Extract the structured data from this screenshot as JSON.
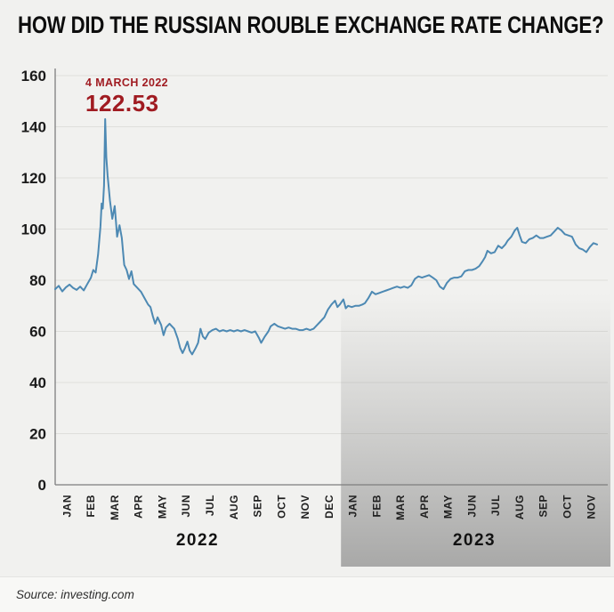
{
  "source": "Source: investing.com",
  "colors": {
    "background": "#f1f1ef",
    "line": "#4d89b3",
    "annotation": "#a01b21",
    "grid": "#dededb",
    "axis": "#7e7e7e",
    "tick_text": "#1a1a1a",
    "shade_top": "rgba(135,135,135,0)",
    "shade_bottom": "rgba(120,120,120,0.6)"
  },
  "chart_data": {
    "type": "line",
    "title": "HOW DID THE RUSSIAN ROUBLE EXCHANGE RATE CHANGE?",
    "xlabel": "",
    "ylabel": "",
    "ylim": [
      0,
      160
    ],
    "y_ticks": [
      0,
      20,
      40,
      60,
      80,
      100,
      120,
      140,
      160
    ],
    "grid": true,
    "legend": "none",
    "highlighted_period": "2023",
    "annotation": {
      "date": "4 MARCH 2022",
      "value": "122.53"
    },
    "x_axis": {
      "groups": [
        {
          "year": "2022",
          "months": [
            "JAN",
            "FEB",
            "MAR",
            "APR",
            "MAY",
            "JUN",
            "JUL",
            "AUG",
            "SEP",
            "OCT",
            "NOV",
            "DEC"
          ]
        },
        {
          "year": "2023",
          "months": [
            "JAN",
            "FEB",
            "MAR",
            "APR",
            "MAY",
            "JUN",
            "JUL",
            "AUG",
            "SEP",
            "OCT",
            "NOV"
          ]
        }
      ]
    },
    "series": [
      {
        "name": "rouble exchange rate",
        "points": [
          [
            0,
            76.5
          ],
          [
            0.15,
            77.8
          ],
          [
            0.3,
            75.6
          ],
          [
            0.45,
            77.2
          ],
          [
            0.6,
            78.3
          ],
          [
            0.75,
            77
          ],
          [
            0.9,
            76.2
          ],
          [
            1.05,
            77.5
          ],
          [
            1.2,
            76
          ],
          [
            1.35,
            78.5
          ],
          [
            1.5,
            81
          ],
          [
            1.6,
            84
          ],
          [
            1.7,
            83
          ],
          [
            1.8,
            90
          ],
          [
            1.9,
            101
          ],
          [
            1.95,
            110
          ],
          [
            2,
            108
          ],
          [
            2.05,
            117
          ],
          [
            2.1,
            143
          ],
          [
            2.15,
            128
          ],
          [
            2.2,
            121
          ],
          [
            2.3,
            111
          ],
          [
            2.4,
            104
          ],
          [
            2.5,
            109
          ],
          [
            2.55,
            103
          ],
          [
            2.6,
            97
          ],
          [
            2.7,
            101.5
          ],
          [
            2.8,
            96.5
          ],
          [
            2.9,
            86
          ],
          [
            3,
            84
          ],
          [
            3.1,
            80.5
          ],
          [
            3.2,
            83.5
          ],
          [
            3.3,
            78.5
          ],
          [
            3.45,
            77
          ],
          [
            3.6,
            75.5
          ],
          [
            3.75,
            73
          ],
          [
            3.9,
            70.5
          ],
          [
            4,
            69.5
          ],
          [
            4.1,
            66
          ],
          [
            4.2,
            63
          ],
          [
            4.3,
            65.5
          ],
          [
            4.45,
            62.5
          ],
          [
            4.55,
            58.5
          ],
          [
            4.65,
            61.5
          ],
          [
            4.8,
            63
          ],
          [
            4.9,
            62
          ],
          [
            5,
            61
          ],
          [
            5.15,
            57
          ],
          [
            5.25,
            53.5
          ],
          [
            5.35,
            51.5
          ],
          [
            5.45,
            53.5
          ],
          [
            5.55,
            56
          ],
          [
            5.65,
            52.5
          ],
          [
            5.75,
            51
          ],
          [
            5.9,
            53.5
          ],
          [
            6,
            55.5
          ],
          [
            6.1,
            61
          ],
          [
            6.2,
            58
          ],
          [
            6.3,
            57
          ],
          [
            6.45,
            59.5
          ],
          [
            6.6,
            60.5
          ],
          [
            6.75,
            61
          ],
          [
            6.9,
            60
          ],
          [
            7.05,
            60.5
          ],
          [
            7.2,
            60
          ],
          [
            7.35,
            60.5
          ],
          [
            7.5,
            60
          ],
          [
            7.65,
            60.5
          ],
          [
            7.8,
            60
          ],
          [
            7.95,
            60.5
          ],
          [
            8.1,
            60
          ],
          [
            8.25,
            59.5
          ],
          [
            8.4,
            60
          ],
          [
            8.55,
            57.5
          ],
          [
            8.65,
            55.5
          ],
          [
            8.8,
            58
          ],
          [
            8.95,
            60
          ],
          [
            9.05,
            62
          ],
          [
            9.2,
            63
          ],
          [
            9.35,
            62
          ],
          [
            9.5,
            61.5
          ],
          [
            9.65,
            61
          ],
          [
            9.8,
            61.5
          ],
          [
            9.95,
            61
          ],
          [
            10.1,
            61
          ],
          [
            10.25,
            60.5
          ],
          [
            10.4,
            60.5
          ],
          [
            10.55,
            61
          ],
          [
            10.7,
            60.5
          ],
          [
            10.85,
            61
          ],
          [
            11,
            62.5
          ],
          [
            11.15,
            64
          ],
          [
            11.3,
            65.5
          ],
          [
            11.45,
            68.5
          ],
          [
            11.6,
            70.5
          ],
          [
            11.75,
            72
          ],
          [
            11.85,
            69.5
          ],
          [
            11.95,
            70.5
          ],
          [
            12.1,
            72.5
          ],
          [
            12.2,
            69
          ],
          [
            12.3,
            70
          ],
          [
            12.45,
            69.5
          ],
          [
            12.6,
            70
          ],
          [
            12.75,
            70
          ],
          [
            12.9,
            70.5
          ],
          [
            13,
            71
          ],
          [
            13.15,
            73
          ],
          [
            13.3,
            75.5
          ],
          [
            13.45,
            74.5
          ],
          [
            13.6,
            75
          ],
          [
            13.75,
            75.5
          ],
          [
            13.9,
            76
          ],
          [
            14.05,
            76.5
          ],
          [
            14.2,
            77
          ],
          [
            14.35,
            77.5
          ],
          [
            14.5,
            77
          ],
          [
            14.65,
            77.5
          ],
          [
            14.8,
            77
          ],
          [
            14.95,
            78
          ],
          [
            15.1,
            80.5
          ],
          [
            15.25,
            81.5
          ],
          [
            15.4,
            81
          ],
          [
            15.55,
            81.5
          ],
          [
            15.7,
            82
          ],
          [
            15.85,
            81
          ],
          [
            16,
            80
          ],
          [
            16.15,
            77.5
          ],
          [
            16.3,
            76.5
          ],
          [
            16.45,
            79
          ],
          [
            16.6,
            80.5
          ],
          [
            16.75,
            81
          ],
          [
            16.9,
            81
          ],
          [
            17.05,
            81.5
          ],
          [
            17.2,
            83.5
          ],
          [
            17.35,
            84
          ],
          [
            17.5,
            84
          ],
          [
            17.65,
            84.5
          ],
          [
            17.8,
            85.5
          ],
          [
            17.95,
            87.5
          ],
          [
            18.05,
            89
          ],
          [
            18.15,
            91.5
          ],
          [
            18.3,
            90.5
          ],
          [
            18.45,
            91
          ],
          [
            18.6,
            93.5
          ],
          [
            18.75,
            92.5
          ],
          [
            18.9,
            94
          ],
          [
            19,
            95.5
          ],
          [
            19.15,
            97
          ],
          [
            19.3,
            99.5
          ],
          [
            19.4,
            100.5
          ],
          [
            19.5,
            97.5
          ],
          [
            19.6,
            95
          ],
          [
            19.75,
            94.5
          ],
          [
            19.9,
            96
          ],
          [
            20.05,
            96.5
          ],
          [
            20.2,
            97.5
          ],
          [
            20.35,
            96.5
          ],
          [
            20.5,
            96.5
          ],
          [
            20.65,
            97
          ],
          [
            20.8,
            97.5
          ],
          [
            20.95,
            99
          ],
          [
            21.1,
            100.5
          ],
          [
            21.25,
            99.5
          ],
          [
            21.4,
            98
          ],
          [
            21.55,
            97.5
          ],
          [
            21.7,
            97
          ],
          [
            21.85,
            94
          ],
          [
            22,
            92.5
          ],
          [
            22.15,
            92
          ],
          [
            22.3,
            91
          ],
          [
            22.45,
            93
          ],
          [
            22.6,
            94.5
          ],
          [
            22.75,
            94
          ]
        ]
      }
    ]
  }
}
